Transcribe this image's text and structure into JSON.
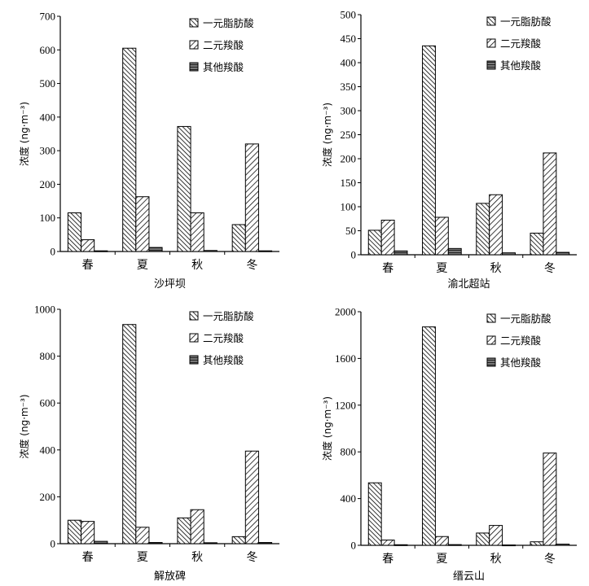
{
  "legend_labels": [
    "一元脂肪酸",
    "二元羧酸",
    "其他羧酸"
  ],
  "colors": {
    "bar_fill": "#ffffff",
    "stroke": "#000000",
    "hatch": "#000000",
    "other": "#555555"
  },
  "chart_data": [
    {
      "type": "bar",
      "title": "沙坪坝",
      "ylabel": "浓度 (ng·m⁻³)",
      "categories": [
        "春",
        "夏",
        "秋",
        "冬"
      ],
      "ylim": [
        0,
        700
      ],
      "yticks": [
        0,
        100,
        200,
        300,
        400,
        500,
        600,
        700
      ],
      "series": [
        {
          "name": "一元脂肪酸",
          "values": [
            115,
            605,
            372,
            80
          ]
        },
        {
          "name": "二元羧酸",
          "values": [
            35,
            163,
            115,
            320
          ]
        },
        {
          "name": "其他羧酸",
          "values": [
            2,
            12,
            3,
            2
          ]
        }
      ]
    },
    {
      "type": "bar",
      "title": "渝北超站",
      "ylabel": "浓度 (ng·m⁻³)",
      "categories": [
        "春",
        "夏",
        "秋",
        "冬"
      ],
      "ylim": [
        0,
        500
      ],
      "yticks": [
        0,
        50,
        100,
        150,
        200,
        250,
        300,
        350,
        400,
        450,
        500
      ],
      "series": [
        {
          "name": "一元脂肪酸",
          "values": [
            51,
            435,
            107,
            45
          ]
        },
        {
          "name": "二元羧酸",
          "values": [
            72,
            78,
            125,
            212
          ]
        },
        {
          "name": "其他羧酸",
          "values": [
            8,
            13,
            4,
            5
          ]
        }
      ]
    },
    {
      "type": "bar",
      "title": "解放碑",
      "ylabel": "浓度 (ng·m⁻³)",
      "categories": [
        "春",
        "夏",
        "秋",
        "冬"
      ],
      "ylim": [
        0,
        1000
      ],
      "yticks": [
        0,
        200,
        400,
        600,
        800,
        1000
      ],
      "series": [
        {
          "name": "一元脂肪酸",
          "values": [
            100,
            935,
            110,
            30
          ]
        },
        {
          "name": "二元羧酸",
          "values": [
            95,
            70,
            145,
            395
          ]
        },
        {
          "name": "其他羧酸",
          "values": [
            10,
            5,
            4,
            5
          ]
        }
      ]
    },
    {
      "type": "bar",
      "title": "缙云山",
      "ylabel": "浓度 (ng·m⁻³)",
      "categories": [
        "春",
        "夏",
        "秋",
        "冬"
      ],
      "ylim": [
        0,
        2000
      ],
      "yticks": [
        0,
        400,
        800,
        1200,
        1600,
        2000
      ],
      "series": [
        {
          "name": "一元脂肪酸",
          "values": [
            535,
            1870,
            105,
            30
          ]
        },
        {
          "name": "二元羧酸",
          "values": [
            45,
            75,
            170,
            790
          ]
        },
        {
          "name": "其他羧酸",
          "values": [
            5,
            6,
            3,
            10
          ]
        }
      ]
    }
  ]
}
